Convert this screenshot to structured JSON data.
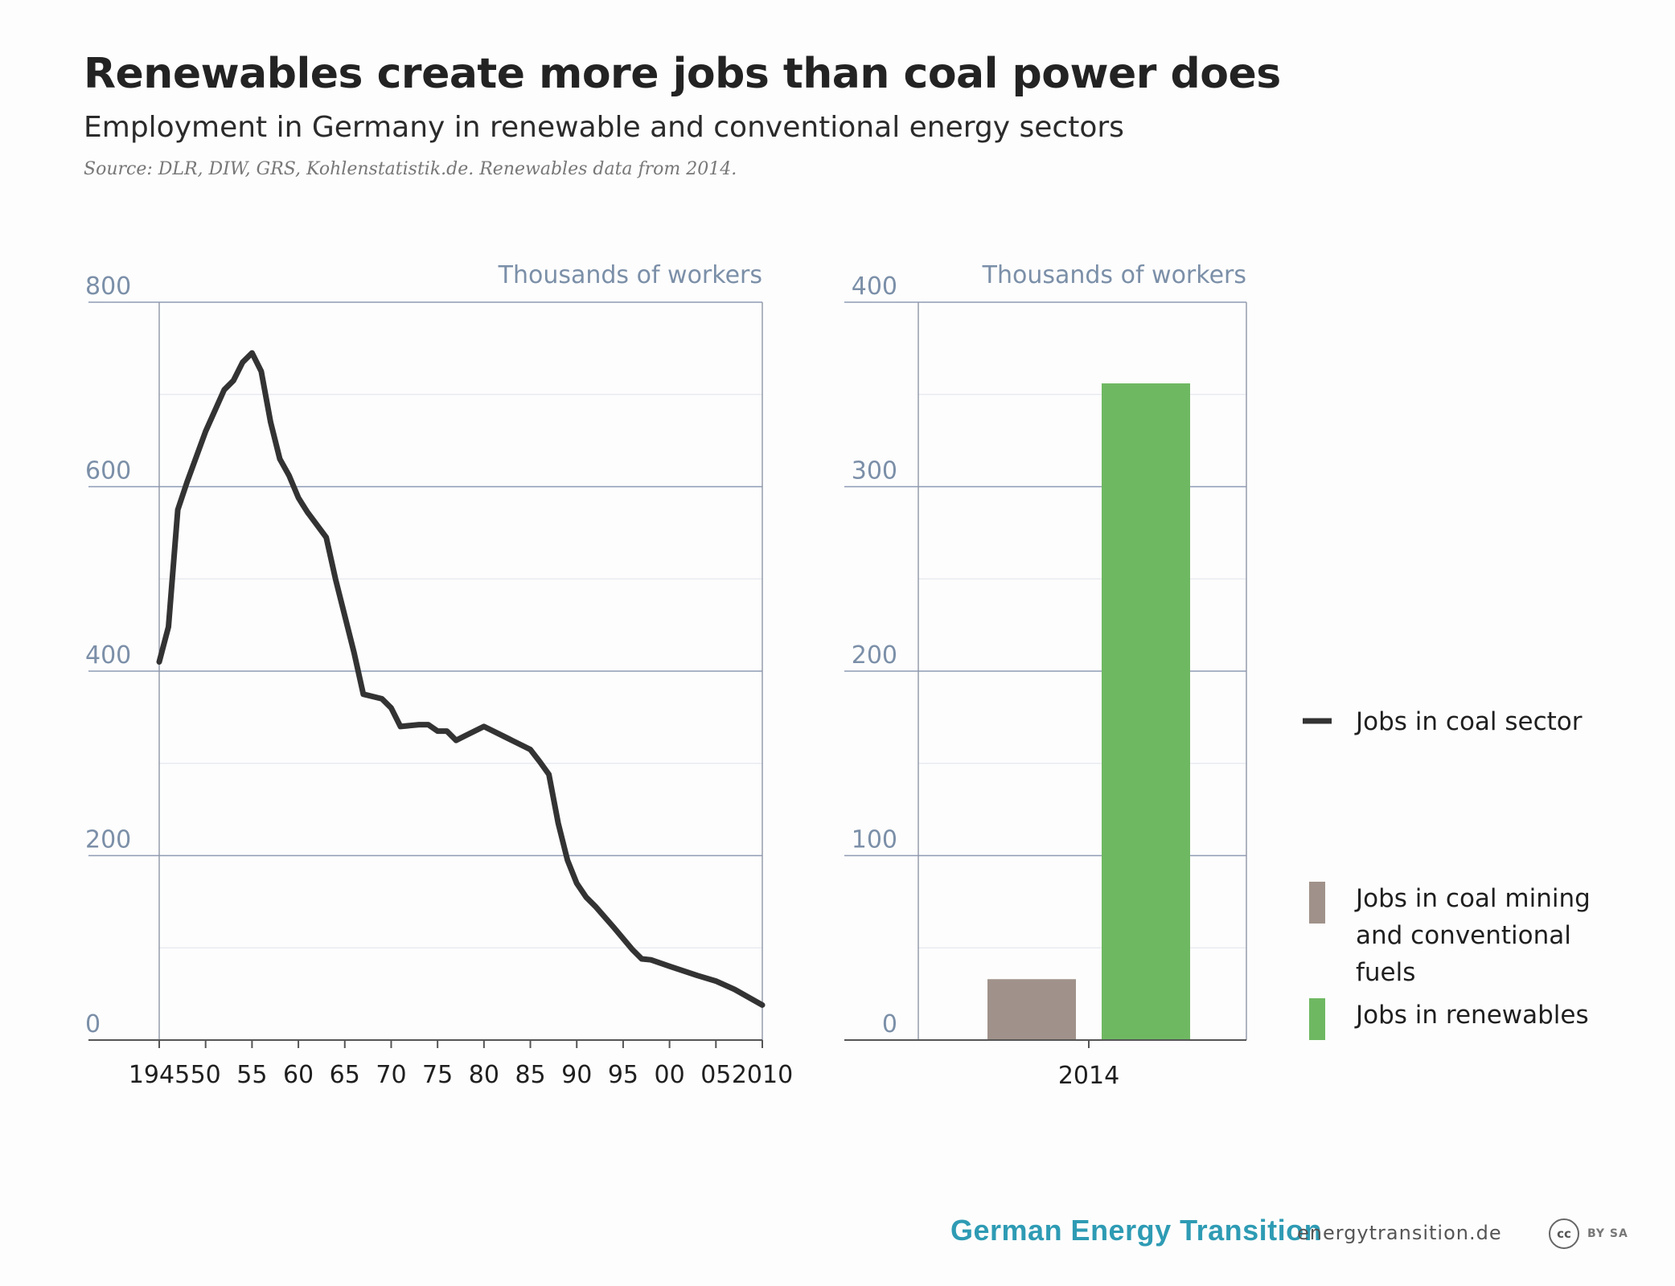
{
  "header": {
    "title": "Renewables create more jobs than coal power does",
    "subtitle": "Employment in Germany in renewable and conventional energy sectors",
    "source": "Source: DLR, DIW, GRS, Kohlenstatistik.de. Renewables data from 2014."
  },
  "colors": {
    "coal_line": "#333333",
    "coal_mining_bar": "#a0928a",
    "renewables_bar": "#6fb862",
    "axis_text": "#7b8fa8",
    "gridline": "#8e9bb5",
    "brand": "#2e9bb4"
  },
  "chart_data": [
    {
      "type": "line",
      "ylabel": "Thousands of workers",
      "ylim": [
        0,
        800
      ],
      "yticks": [
        0,
        200,
        400,
        600,
        800
      ],
      "xlim": [
        1945,
        2010
      ],
      "xtick_values": [
        1945,
        1950,
        1955,
        1960,
        1965,
        1970,
        1975,
        1980,
        1985,
        1990,
        1995,
        2000,
        2005,
        2010
      ],
      "xtick_labels": [
        "1945",
        "50",
        "55",
        "60",
        "65",
        "70",
        "75",
        "80",
        "85",
        "90",
        "95",
        "00",
        "05",
        "2010"
      ],
      "grid": true,
      "series": [
        {
          "name": "Jobs in coal sector",
          "color": "#333333",
          "x": [
            1945,
            1946,
            1947,
            1948,
            1950,
            1952,
            1953,
            1954,
            1955,
            1956,
            1957,
            1958,
            1959,
            1960,
            1960.5,
            1961,
            1963,
            1964,
            1966,
            1967,
            1969,
            1970,
            1971,
            1973,
            1974,
            1975,
            1976,
            1977,
            1978,
            1980,
            1982,
            1983,
            1985,
            1986,
            1987,
            1988,
            1989,
            1990,
            1991,
            1992,
            1994,
            1996,
            1997,
            1998,
            2000,
            2003,
            2005,
            2007,
            2010
          ],
          "y": [
            410,
            448,
            575,
            605,
            660,
            705,
            715,
            735,
            745,
            725,
            670,
            630,
            612,
            588,
            580,
            572,
            545,
            500,
            420,
            375,
            370,
            360,
            340,
            342,
            342,
            335,
            335,
            325,
            330,
            340,
            330,
            325,
            315,
            302,
            288,
            235,
            195,
            170,
            155,
            145,
            122,
            98,
            88,
            87,
            80,
            70,
            64,
            55,
            38
          ]
        }
      ]
    },
    {
      "type": "bar",
      "ylabel": "Thousands of workers",
      "ylim": [
        0,
        400
      ],
      "yticks": [
        0,
        100,
        200,
        300,
        400
      ],
      "categories": [
        "2014"
      ],
      "grid": true,
      "series": [
        {
          "name": "Jobs in coal mining and conventional fuels",
          "color": "#a0928a",
          "values": [
            33
          ]
        },
        {
          "name": "Jobs in renewables",
          "color": "#6fb862",
          "values": [
            356
          ]
        }
      ]
    }
  ],
  "legend": {
    "placement": "right",
    "items": [
      {
        "label_lines": [
          "Jobs in coal sector"
        ],
        "kind": "line",
        "color": "#333333"
      },
      {
        "label_lines": [
          "Jobs in coal mining",
          "and conventional",
          "fuels"
        ],
        "kind": "box",
        "color": "#a0928a"
      },
      {
        "label_lines": [
          "Jobs in renewables"
        ],
        "kind": "box",
        "color": "#6fb862"
      }
    ]
  },
  "footer": {
    "brand": "German Energy Transition",
    "site": "energytransition.de",
    "license_badge": "cc",
    "license_text": "BY SA"
  }
}
